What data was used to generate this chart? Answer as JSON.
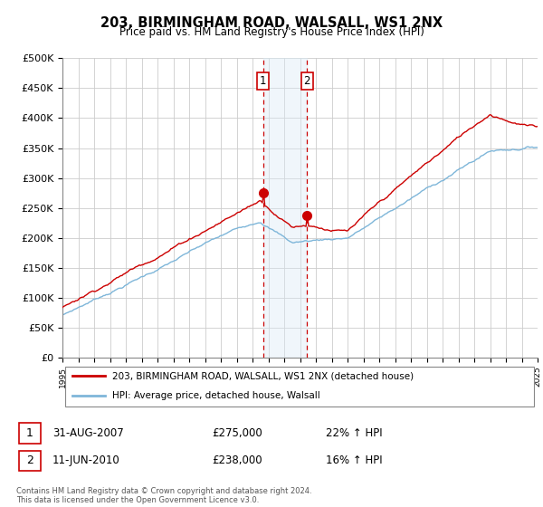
{
  "title": "203, BIRMINGHAM ROAD, WALSALL, WS1 2NX",
  "subtitle": "Price paid vs. HM Land Registry's House Price Index (HPI)",
  "legend_line1": "203, BIRMINGHAM ROAD, WALSALL, WS1 2NX (detached house)",
  "legend_line2": "HPI: Average price, detached house, Walsall",
  "annotation1_date": "31-AUG-2007",
  "annotation1_price": "£275,000",
  "annotation1_hpi": "22% ↑ HPI",
  "annotation2_date": "11-JUN-2010",
  "annotation2_price": "£238,000",
  "annotation2_hpi": "16% ↑ HPI",
  "footer": "Contains HM Land Registry data © Crown copyright and database right 2024.\nThis data is licensed under the Open Government Licence v3.0.",
  "hpi_color": "#7eb6d9",
  "price_color": "#cc0000",
  "vline_color": "#cc0000",
  "shade_color": "#daeaf5",
  "ylim": [
    0,
    500000
  ],
  "yticks": [
    0,
    50000,
    100000,
    150000,
    200000,
    250000,
    300000,
    350000,
    400000,
    450000,
    500000
  ],
  "start_year": 1995,
  "end_year": 2025,
  "purchase1_year": 2007.67,
  "purchase1_value": 275000,
  "purchase2_year": 2010.45,
  "purchase2_value": 238000
}
